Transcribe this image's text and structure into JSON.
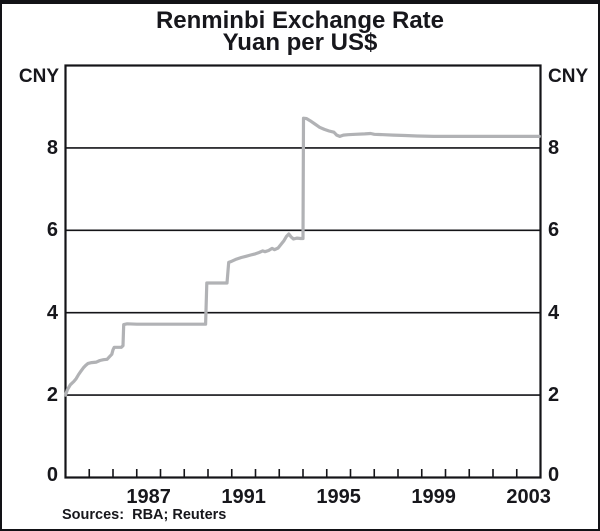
{
  "window": {
    "title_line1": "Renminbi Exchange Rate",
    "title_line2": "Yuan per US$"
  },
  "footer": {
    "sources": "Sources:  RBA; Reuters"
  },
  "chart_data": {
    "type": "line",
    "title": "Renminbi Exchange Rate",
    "subtitle": "Yuan per US$",
    "series_name": "Yuan per US$",
    "unit_label_left": "CNY",
    "unit_label_right": "CNY",
    "xlim": [
      1984,
      2004
    ],
    "ylim": [
      0,
      10
    ],
    "grid": true,
    "gridline_values": [
      2,
      4,
      6,
      8
    ],
    "ytick_values": [
      0,
      2,
      4,
      6,
      8
    ],
    "ytick_labels": [
      "0",
      "2",
      "4",
      "6",
      "8"
    ],
    "xtick_years": [
      1985,
      1986,
      1987,
      1988,
      1989,
      1990,
      1991,
      1992,
      1993,
      1994,
      1995,
      1996,
      1997,
      1998,
      1999,
      2000,
      2001,
      2002,
      2003
    ],
    "xlabel_years": [
      1987,
      1991,
      1995,
      1999,
      2003
    ],
    "xlabels": [
      "1987",
      "1991",
      "1995",
      "1999",
      "2003"
    ],
    "line_color": "#b1b2b5",
    "axis_color": "#141418",
    "x": [
      1984.0,
      1984.08,
      1984.2,
      1984.35,
      1984.45,
      1984.55,
      1984.65,
      1984.75,
      1984.85,
      1984.95,
      1985.1,
      1985.3,
      1985.45,
      1985.6,
      1985.75,
      1985.85,
      1985.95,
      1986.0,
      1986.05,
      1986.35,
      1986.42,
      1986.45,
      1986.6,
      1987.0,
      1988.0,
      1989.0,
      1989.9,
      1989.95,
      1990.3,
      1990.8,
      1990.87,
      1991.0,
      1991.2,
      1991.4,
      1991.6,
      1991.8,
      1992.0,
      1992.15,
      1992.3,
      1992.4,
      1992.55,
      1992.7,
      1992.8,
      1992.95,
      1993.05,
      1993.2,
      1993.3,
      1993.4,
      1993.5,
      1993.6,
      1993.75,
      1993.9,
      1994.0,
      1994.02,
      1994.15,
      1994.3,
      1994.5,
      1994.7,
      1994.9,
      1995.1,
      1995.3,
      1995.42,
      1995.55,
      1995.7,
      1995.9,
      1996.2,
      1996.6,
      1996.85,
      1997.0,
      1997.4,
      1997.8,
      1998.3,
      1998.8,
      1999.5,
      2000.5,
      2001.5,
      2002.5,
      2003.5,
      2003.95
    ],
    "values": [
      2.0,
      2.13,
      2.25,
      2.33,
      2.4,
      2.5,
      2.58,
      2.66,
      2.72,
      2.77,
      2.79,
      2.8,
      2.84,
      2.86,
      2.87,
      2.93,
      2.99,
      3.1,
      3.16,
      3.16,
      3.2,
      3.71,
      3.73,
      3.72,
      3.72,
      3.72,
      3.72,
      4.72,
      4.72,
      4.72,
      5.22,
      5.25,
      5.3,
      5.34,
      5.37,
      5.4,
      5.43,
      5.46,
      5.5,
      5.48,
      5.51,
      5.56,
      5.53,
      5.57,
      5.64,
      5.75,
      5.85,
      5.91,
      5.84,
      5.79,
      5.81,
      5.8,
      5.8,
      8.72,
      8.71,
      8.66,
      8.58,
      8.5,
      8.45,
      8.41,
      8.38,
      8.31,
      8.28,
      8.31,
      8.32,
      8.33,
      8.34,
      8.35,
      8.33,
      8.32,
      8.31,
      8.3,
      8.29,
      8.28,
      8.28,
      8.28,
      8.28,
      8.28,
      8.28
    ]
  }
}
